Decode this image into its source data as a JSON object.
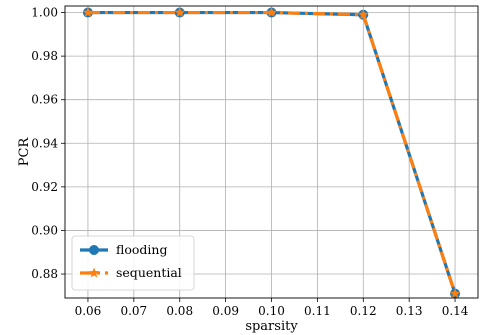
{
  "chart_data": {
    "type": "line",
    "xlabel": "sparsity",
    "ylabel": "PCR",
    "x": [
      0.06,
      0.08,
      0.1,
      0.12,
      0.14
    ],
    "xlim": [
      0.055,
      0.145
    ],
    "ylim": [
      0.869,
      1.003
    ],
    "xticks": [
      "0.06",
      "0.07",
      "0.08",
      "0.09",
      "0.10",
      "0.11",
      "0.12",
      "0.13",
      "0.14"
    ],
    "yticks": [
      "0.88",
      "0.90",
      "0.92",
      "0.94",
      "0.96",
      "0.98",
      "1.00"
    ],
    "grid": true,
    "legend_position": "lower-left",
    "series": [
      {
        "name": "flooding",
        "values": [
          1.0,
          1.0,
          1.0,
          0.999,
          0.871
        ],
        "color": "#1f77b4",
        "marker": "circle",
        "line_style": "solid"
      },
      {
        "name": "sequential",
        "values": [
          1.0,
          1.0,
          1.0,
          0.999,
          0.871
        ],
        "color": "#ff7f0e",
        "marker": "star",
        "line_style": "dash-dot"
      }
    ]
  }
}
